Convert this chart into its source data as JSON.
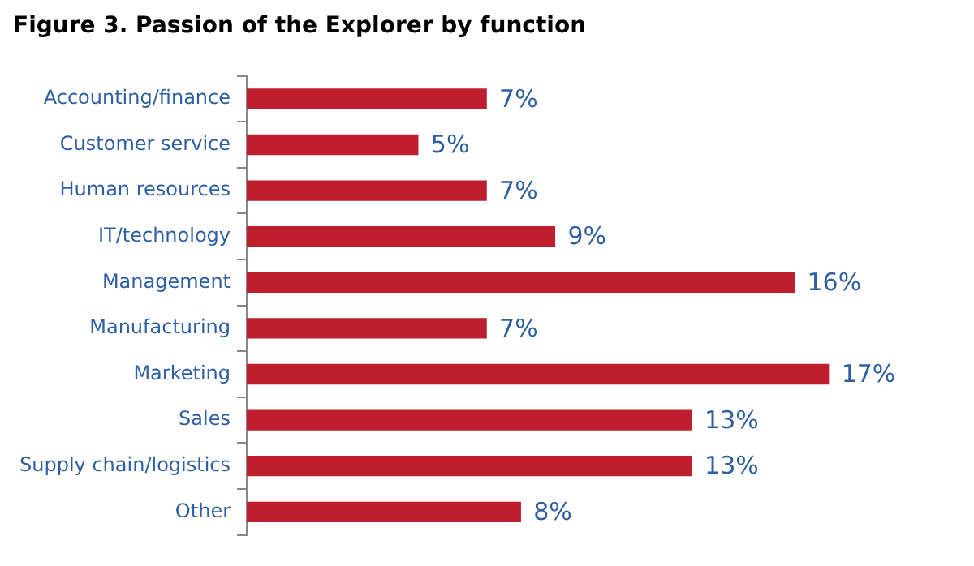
{
  "chart_data": {
    "type": "bar",
    "orientation": "horizontal",
    "title": "Figure 3. Passion of the Explorer by function",
    "categories": [
      "Accounting/finance",
      "Customer service",
      "Human resources",
      "IT/technology",
      "Management",
      "Manufacturing",
      "Marketing",
      "Sales",
      "Supply chain/logistics",
      "Other"
    ],
    "values": [
      7,
      5,
      7,
      9,
      16,
      7,
      17,
      13,
      13,
      8
    ],
    "value_labels": [
      "7%",
      "5%",
      "7%",
      "9%",
      "16%",
      "7%",
      "17%",
      "13%",
      "13%",
      "8%"
    ],
    "color": "#be1e2d",
    "tick_labels": "y",
    "grid": false,
    "legend": false
  }
}
